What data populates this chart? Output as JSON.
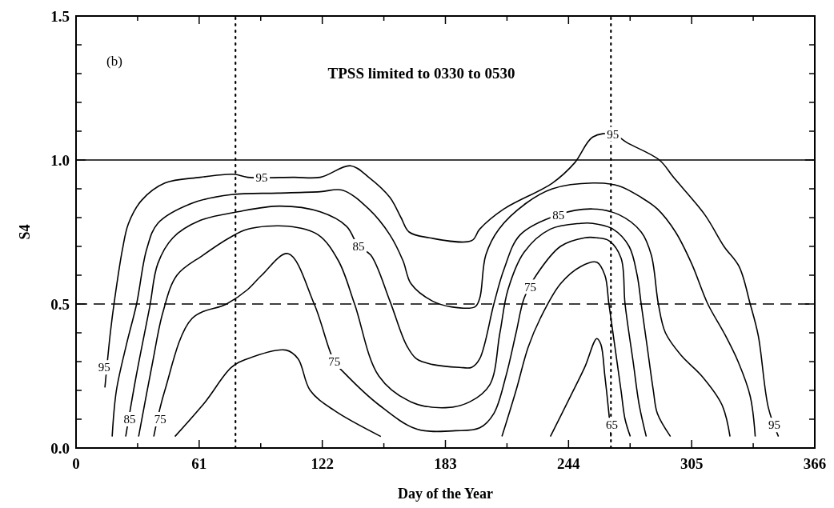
{
  "chart_data": {
    "type": "line",
    "xlabel": "Day of the Year",
    "ylabel": "S4",
    "xlim": [
      0,
      366
    ],
    "ylim": [
      0,
      1.5
    ],
    "xticks": [
      0,
      {
        "value": 30.5,
        "label": null
      },
      61,
      {
        "value": 91.5,
        "label": null
      },
      122,
      {
        "value": 152.5,
        "label": null
      },
      183,
      {
        "value": 213.5,
        "label": null
      },
      244,
      {
        "value": 274.5,
        "label": null
      },
      305,
      {
        "value": 335.5,
        "label": null
      },
      366
    ],
    "yticks": [
      {
        "value": 0,
        "label": "0.0"
      },
      {
        "value": 0.1,
        "label": null
      },
      {
        "value": 0.2,
        "label": null
      },
      {
        "value": 0.3,
        "label": null
      },
      {
        "value": 0.4,
        "label": null
      },
      {
        "value": 0.5,
        "label": "0.5"
      },
      {
        "value": 0.6,
        "label": null
      },
      {
        "value": 0.7,
        "label": null
      },
      {
        "value": 0.8,
        "label": null
      },
      {
        "value": 0.9,
        "label": null
      },
      {
        "value": 1.0,
        "label": "1.0"
      },
      {
        "value": 1.1,
        "label": null
      },
      {
        "value": 1.2,
        "label": null
      },
      {
        "value": 1.3,
        "label": null
      },
      {
        "value": 1.4,
        "label": null
      },
      {
        "value": 1.5,
        "label": "1.5"
      }
    ],
    "grid": false,
    "line_style": "solid",
    "marker": "none",
    "series": [
      {
        "color": "#000000",
        "x": [
          14.3,
          17,
          19,
          23,
          26,
          32.5,
          44,
          61.5,
          74.6,
          79,
          85,
          108,
          121,
          136,
          145,
          155.5,
          161,
          165,
          175,
          196,
          200,
          212,
          236,
          247,
          256,
          266,
          273,
          289,
          296,
          311.5,
          321,
          328.5,
          334,
          338,
          343,
          348
        ],
        "values": [
          0.21,
          0.4,
          0.51,
          0.69,
          0.78,
          0.86,
          0.92,
          0.94,
          0.95,
          0.95,
          0.94,
          0.94,
          0.94,
          0.98,
          0.94,
          0.87,
          0.8,
          0.75,
          0.73,
          0.72,
          0.76,
          0.83,
          0.92,
          0.99,
          1.08,
          1.09,
          1.06,
          1.0,
          0.94,
          0.81,
          0.7,
          0.63,
          0.5,
          0.39,
          0.14,
          0.04
        ]
      },
      {
        "color": "#000000",
        "x": [
          17.9,
          20,
          25,
          30,
          35,
          40.5,
          57.5,
          77,
          100,
          121,
          132,
          145,
          155.5,
          162,
          166,
          176.6,
          186,
          197.6,
          200,
          203,
          209.5,
          223,
          236,
          256,
          269,
          280,
          288,
          297,
          305,
          313,
          321,
          328,
          334,
          336.5
        ],
        "values": [
          0.04,
          0.2,
          0.36,
          0.5,
          0.69,
          0.78,
          0.85,
          0.88,
          0.885,
          0.89,
          0.895,
          0.83,
          0.74,
          0.65,
          0.57,
          0.51,
          0.49,
          0.49,
          0.52,
          0.67,
          0.76,
          0.85,
          0.9,
          0.92,
          0.91,
          0.87,
          0.83,
          0.75,
          0.64,
          0.5,
          0.4,
          0.3,
          0.18,
          0.04
        ]
      },
      {
        "color": "#000000",
        "x": [
          24.6,
          29.8,
          36.5,
          40.5,
          48,
          61.5,
          80,
          101,
          121,
          134,
          140,
          146,
          155.5,
          163.5,
          168.6,
          176.6,
          190,
          196,
          200,
          207,
          212,
          220,
          239,
          256,
          269,
          280,
          285,
          288.5,
          292,
          300,
          310,
          320,
          324
        ],
        "values": [
          0.04,
          0.25,
          0.49,
          0.64,
          0.73,
          0.79,
          0.82,
          0.84,
          0.82,
          0.77,
          0.7,
          0.67,
          0.51,
          0.36,
          0.31,
          0.29,
          0.28,
          0.28,
          0.31,
          0.5,
          0.62,
          0.74,
          0.81,
          0.83,
          0.81,
          0.75,
          0.67,
          0.5,
          0.4,
          0.32,
          0.25,
          0.15,
          0.04
        ]
      },
      {
        "color": "#000000",
        "x": [
          31,
          38,
          43,
          50,
          63,
          76,
          85,
          105,
          120,
          130,
          138,
          150,
          166,
          183,
          195,
          205,
          210,
          214,
          222,
          235,
          250,
          256,
          266,
          274,
          278,
          280,
          283,
          286,
          288,
          294.5
        ],
        "values": [
          0.04,
          0.3,
          0.47,
          0.6,
          0.67,
          0.73,
          0.76,
          0.77,
          0.74,
          0.65,
          0.5,
          0.25,
          0.16,
          0.14,
          0.16,
          0.22,
          0.4,
          0.55,
          0.68,
          0.76,
          0.78,
          0.78,
          0.76,
          0.7,
          0.6,
          0.5,
          0.35,
          0.2,
          0.12,
          0.04
        ]
      },
      {
        "color": "#000000",
        "x": [
          38.5,
          44,
          57.5,
          74.6,
          85,
          92,
          105,
          118,
          128,
          133,
          150,
          169,
          188,
          200,
          207,
          213,
          218,
          222,
          228,
          240,
          252,
          258,
          264,
          270,
          272,
          276,
          279,
          282.5
        ],
        "values": [
          0.04,
          0.2,
          0.45,
          0.5,
          0.55,
          0.6,
          0.675,
          0.5,
          0.3,
          0.26,
          0.15,
          0.065,
          0.06,
          0.07,
          0.12,
          0.25,
          0.4,
          0.52,
          0.6,
          0.7,
          0.73,
          0.73,
          0.72,
          0.66,
          0.5,
          0.3,
          0.15,
          0.04
        ]
      },
      {
        "color": "#000000",
        "x": [
          49,
          64,
          77,
          85,
          104,
          110,
          116,
          128,
          151,
          null,
          211,
          218,
          224,
          230,
          240,
          250,
          258,
          262,
          264,
          267,
          270,
          272,
          274.6
        ],
        "values": [
          0.04,
          0.16,
          0.28,
          0.31,
          0.34,
          0.31,
          0.2,
          0.13,
          0.04,
          null,
          0.04,
          0.2,
          0.35,
          0.45,
          0.57,
          0.63,
          0.645,
          0.6,
          0.5,
          0.35,
          0.2,
          0.1,
          0.04
        ]
      },
      {
        "color": "#000000",
        "x": [
          235,
          245,
          252,
          258,
          260,
          262,
          264,
          265
        ],
        "values": [
          0.04,
          0.18,
          0.28,
          0.38,
          0.36,
          0.25,
          0.12,
          0.04
        ]
      }
    ],
    "ref_lines": [
      {
        "axis": "y",
        "value": 1.0,
        "line_style": "solid"
      },
      {
        "axis": "y",
        "value": 0.5,
        "line_style": "dashed"
      },
      {
        "axis": "x",
        "value": 79,
        "line_style": "dotted"
      },
      {
        "axis": "x",
        "value": 265,
        "line_style": "dotted"
      }
    ],
    "annotations": [
      "(b)",
      "TPSS limited to 0330 to 0530",
      {
        "text": "95",
        "x": 14,
        "y": 0.28
      },
      {
        "text": "85",
        "x": 26.6,
        "y": 0.1
      },
      {
        "text": "75",
        "x": 41.7,
        "y": 0.1
      },
      {
        "text": "95",
        "x": 92,
        "y": 0.94
      },
      {
        "text": "85",
        "x": 140,
        "y": 0.7
      },
      {
        "text": "75",
        "x": 128,
        "y": 0.3
      },
      {
        "text": "85",
        "x": 239,
        "y": 0.81
      },
      {
        "text": "75",
        "x": 225,
        "y": 0.56
      },
      {
        "text": "95",
        "x": 266,
        "y": 1.09
      },
      {
        "text": "65",
        "x": 265.5,
        "y": 0.08
      },
      {
        "text": "95",
        "x": 346,
        "y": 0.08
      }
    ]
  }
}
